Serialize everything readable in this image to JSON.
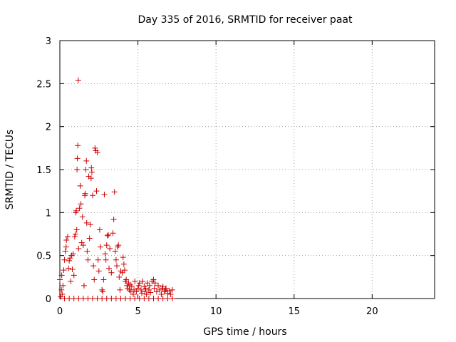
{
  "chart_data": {
    "type": "scatter",
    "title": "Day 335 of 2016, SRMTID for receiver paat",
    "xlabel": "GPS time / hours",
    "ylabel": "SRMTID / TECUs",
    "xlim": [
      0,
      24
    ],
    "ylim": [
      0,
      3
    ],
    "x_ticks": [
      0,
      5,
      10,
      15,
      20
    ],
    "x_tick_labels": [
      "0",
      "5",
      "10",
      "15",
      "20"
    ],
    "y_ticks": [
      0,
      0.5,
      1,
      1.5,
      2,
      2.5,
      3
    ],
    "y_tick_labels": [
      "0",
      "0.5",
      "1",
      "1.5",
      "2",
      "2.5",
      "3"
    ],
    "grid": true,
    "marker": "+",
    "color": "#cc0000",
    "series": [
      {
        "name": "SRMTID",
        "points": [
          [
            0.0,
            0.22
          ],
          [
            0.05,
            0.02
          ],
          [
            0.1,
            0.1
          ],
          [
            0.12,
            0.27
          ],
          [
            0.15,
            0.05
          ],
          [
            0.2,
            0.15
          ],
          [
            0.25,
            0.33
          ],
          [
            0.3,
            0.45
          ],
          [
            0.35,
            0.55
          ],
          [
            0.4,
            0.6
          ],
          [
            0.42,
            0.68
          ],
          [
            0.5,
            0.72
          ],
          [
            0.55,
            0.35
          ],
          [
            0.6,
            0.44
          ],
          [
            0.65,
            0.47
          ],
          [
            0.7,
            0.2
          ],
          [
            0.75,
            0.5
          ],
          [
            0.8,
            0.34
          ],
          [
            0.85,
            0.52
          ],
          [
            0.9,
            0.27
          ],
          [
            0.95,
            0.72
          ],
          [
            1.0,
            0.75
          ],
          [
            1.02,
            1.0
          ],
          [
            1.05,
            1.02
          ],
          [
            1.08,
            0.8
          ],
          [
            1.1,
            1.5
          ],
          [
            1.12,
            1.63
          ],
          [
            1.15,
            1.78
          ],
          [
            1.18,
            2.54
          ],
          [
            1.2,
            0.58
          ],
          [
            1.25,
            1.05
          ],
          [
            1.3,
            1.31
          ],
          [
            1.35,
            1.1
          ],
          [
            1.4,
            0.65
          ],
          [
            1.45,
            0.95
          ],
          [
            1.5,
            0.62
          ],
          [
            1.55,
            0.15
          ],
          [
            1.6,
            1.2
          ],
          [
            1.62,
            1.22
          ],
          [
            1.65,
            1.5
          ],
          [
            1.7,
            1.6
          ],
          [
            1.72,
            0.88
          ],
          [
            1.75,
            0.55
          ],
          [
            1.8,
            0.45
          ],
          [
            1.85,
            1.42
          ],
          [
            1.9,
            0.7
          ],
          [
            1.95,
            0.86
          ],
          [
            2.0,
            1.4
          ],
          [
            2.02,
            1.52
          ],
          [
            2.05,
            1.47
          ],
          [
            2.1,
            1.2
          ],
          [
            2.15,
            0.38
          ],
          [
            2.2,
            0.22
          ],
          [
            2.25,
            1.75
          ],
          [
            2.3,
            1.72
          ],
          [
            2.35,
            1.25
          ],
          [
            2.4,
            1.7
          ],
          [
            2.45,
            0.45
          ],
          [
            2.5,
            0.32
          ],
          [
            2.55,
            0.8
          ],
          [
            2.6,
            0.6
          ],
          [
            2.7,
            0.1
          ],
          [
            2.75,
            0.08
          ],
          [
            2.8,
            0.22
          ],
          [
            2.85,
            1.21
          ],
          [
            2.9,
            0.52
          ],
          [
            2.95,
            0.45
          ],
          [
            3.0,
            0.62
          ],
          [
            3.05,
            0.73
          ],
          [
            3.1,
            0.74
          ],
          [
            3.15,
            0.35
          ],
          [
            3.2,
            0.58
          ],
          [
            3.3,
            0.3
          ],
          [
            3.4,
            0.76
          ],
          [
            3.45,
            0.92
          ],
          [
            3.5,
            1.24
          ],
          [
            3.55,
            0.55
          ],
          [
            3.6,
            0.45
          ],
          [
            3.65,
            0.38
          ],
          [
            3.7,
            0.6
          ],
          [
            3.75,
            0.62
          ],
          [
            3.8,
            0.25
          ],
          [
            3.85,
            0.1
          ],
          [
            3.9,
            0.32
          ],
          [
            4.0,
            0.3
          ],
          [
            4.05,
            0.48
          ],
          [
            4.1,
            0.4
          ],
          [
            4.15,
            0.33
          ],
          [
            4.2,
            0.2
          ],
          [
            4.25,
            0.22
          ],
          [
            4.3,
            0.15
          ],
          [
            4.35,
            0.12
          ],
          [
            4.4,
            0.18
          ],
          [
            4.45,
            0.1
          ],
          [
            4.5,
            0.16
          ],
          [
            4.55,
            0.08
          ],
          [
            4.6,
            0.14
          ],
          [
            4.7,
            0.05
          ],
          [
            4.75,
            0.1
          ],
          [
            4.8,
            0.2
          ],
          [
            4.9,
            0.08
          ],
          [
            5.0,
            0.12
          ],
          [
            5.05,
            0.15
          ],
          [
            5.1,
            0.18
          ],
          [
            5.2,
            0.1
          ],
          [
            5.25,
            0.06
          ],
          [
            5.3,
            0.2
          ],
          [
            5.4,
            0.14
          ],
          [
            5.45,
            0.08
          ],
          [
            5.5,
            0.12
          ],
          [
            5.55,
            0.05
          ],
          [
            5.6,
            0.18
          ],
          [
            5.7,
            0.1
          ],
          [
            5.75,
            0.15
          ],
          [
            5.8,
            0.07
          ],
          [
            5.9,
            0.2
          ],
          [
            6.0,
            0.22
          ],
          [
            6.05,
            0.12
          ],
          [
            6.1,
            0.18
          ],
          [
            6.2,
            0.08
          ],
          [
            6.3,
            0.15
          ],
          [
            6.4,
            0.1
          ],
          [
            6.5,
            0.05
          ],
          [
            6.55,
            0.12
          ],
          [
            6.6,
            0.14
          ],
          [
            6.7,
            0.08
          ],
          [
            6.75,
            0.1
          ],
          [
            6.8,
            0.12
          ],
          [
            6.9,
            0.06
          ],
          [
            7.0,
            0.09
          ],
          [
            7.1,
            0.05
          ],
          [
            7.2,
            0.1
          ],
          [
            0.3,
            0.0
          ],
          [
            0.6,
            0.0
          ],
          [
            0.9,
            0.0
          ],
          [
            1.2,
            0.0
          ],
          [
            1.5,
            0.0
          ],
          [
            1.8,
            0.0
          ],
          [
            2.1,
            0.0
          ],
          [
            2.4,
            0.0
          ],
          [
            2.7,
            0.0
          ],
          [
            3.0,
            0.0
          ],
          [
            3.3,
            0.0
          ],
          [
            3.6,
            0.0
          ],
          [
            3.9,
            0.0
          ],
          [
            4.2,
            0.0
          ],
          [
            4.5,
            0.0
          ],
          [
            4.8,
            0.0
          ],
          [
            5.1,
            0.0
          ],
          [
            5.4,
            0.0
          ],
          [
            5.7,
            0.0
          ],
          [
            6.0,
            0.0
          ],
          [
            6.3,
            0.0
          ],
          [
            6.6,
            0.0
          ],
          [
            6.9,
            0.0
          ],
          [
            7.2,
            0.0
          ]
        ]
      }
    ]
  }
}
